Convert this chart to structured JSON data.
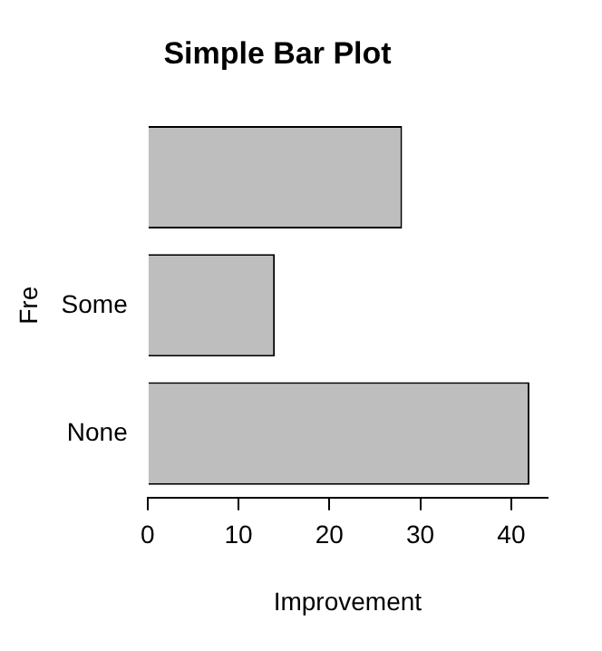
{
  "chart_data": {
    "type": "bar",
    "orientation": "horizontal",
    "title": "Simple Bar Plot",
    "xlabel": "Improvement",
    "ylabel": "Fre",
    "categories": [
      null,
      "Some",
      "None"
    ],
    "values": [
      28,
      14,
      42
    ],
    "color": "#bebebe",
    "xlim": [
      0,
      44
    ],
    "xticks": [
      0,
      10,
      20,
      30,
      40
    ],
    "grid": false,
    "legend": false
  }
}
